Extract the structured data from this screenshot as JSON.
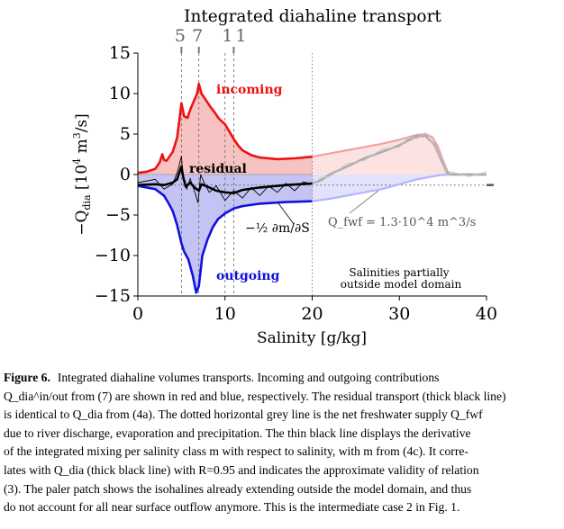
{
  "chart_data": {
    "type": "area",
    "title": "Integrated diahaline transport",
    "xlabel": "Salinity [g/kg]",
    "ylabel": "−Q_dia [10^4 m^3/s]",
    "xlim": [
      0,
      40
    ],
    "ylim": [
      -15,
      15
    ],
    "xticks": [
      0,
      10,
      20,
      30,
      40
    ],
    "yticks": [
      15,
      10,
      5,
      0,
      -5,
      -10,
      -15
    ],
    "top_markers": [
      {
        "label": "5",
        "x": 5.0
      },
      {
        "label": "7",
        "x": 7.0
      },
      {
        "label": "11",
        "x": 11.0
      }
    ],
    "vertical_lines": [
      5.0,
      7.0,
      10.0,
      11.0,
      20.0
    ],
    "series": [
      {
        "name": "incoming",
        "color": "#ee1111",
        "x": [
          0,
          1,
          2,
          2.5,
          2.8,
          3.0,
          3.3,
          4.0,
          4.5,
          4.8,
          5.0,
          5.3,
          5.7,
          6.0,
          6.4,
          6.8,
          7.0,
          7.3,
          7.8,
          8.3,
          8.8,
          9.3,
          10.0,
          10.5,
          11.0,
          11.5,
          12.0,
          13.0,
          14.0,
          16.0,
          18.0,
          20.0
        ],
        "y": [
          0.2,
          0.35,
          0.7,
          1.5,
          2.5,
          1.8,
          1.7,
          2.8,
          4.5,
          7.0,
          8.8,
          7.2,
          7.0,
          8.0,
          9.0,
          10.0,
          11.2,
          10.0,
          9.2,
          8.4,
          7.7,
          6.9,
          6.2,
          5.3,
          4.4,
          3.6,
          3.0,
          2.4,
          2.1,
          1.9,
          2.0,
          2.2
        ]
      },
      {
        "name": "outgoing",
        "color": "#1111dd",
        "x": [
          0,
          2,
          3.0,
          3.5,
          4.0,
          4.5,
          5.0,
          5.3,
          5.8,
          6.3,
          6.7,
          7.0,
          7.4,
          8.0,
          8.6,
          9.2,
          10.0,
          11.0,
          12.0,
          14.0,
          17.0,
          20.0
        ],
        "y": [
          -1.4,
          -1.8,
          -2.6,
          -3.5,
          -4.5,
          -6.2,
          -8.5,
          -9.5,
          -10.5,
          -12.5,
          -14.6,
          -13.8,
          -10.0,
          -8.0,
          -6.5,
          -5.5,
          -4.8,
          -4.2,
          -3.9,
          -3.6,
          -3.4,
          -3.3
        ]
      },
      {
        "name": "residual",
        "color": "#000000",
        "x": [
          0,
          2,
          3,
          4,
          4.5,
          5.0,
          5.2,
          5.5,
          6.0,
          6.5,
          7.0,
          7.3,
          8.0,
          9.0,
          10.0,
          11.0,
          12.0,
          14.0,
          17.0,
          20.0
        ],
        "y": [
          -1.3,
          -1.2,
          -1.3,
          -1.0,
          -0.6,
          1.0,
          -0.3,
          -1.5,
          -1.0,
          -1.6,
          -2.0,
          -1.2,
          -1.5,
          -2.0,
          -2.2,
          -2.3,
          -1.9,
          -1.6,
          -1.3,
          -1.1
        ]
      },
      {
        "name": "−½ ∂m/∂S",
        "color": "#000000",
        "x": [
          0,
          2,
          3,
          4,
          4.6,
          5.0,
          5.2,
          5.6,
          6.0,
          6.6,
          6.9,
          7.2,
          7.6,
          8.2,
          9.0,
          10.0,
          11.0,
          12.0,
          13.0,
          14.0,
          15.0,
          16.0,
          17.0,
          18.0,
          19.0,
          20.0
        ],
        "y": [
          -1.0,
          -0.6,
          -1.8,
          -1.2,
          0.5,
          2.3,
          -0.5,
          -1.8,
          -0.5,
          -2.4,
          -3.5,
          0.0,
          -1.0,
          -2.2,
          -1.4,
          -3.2,
          -2.0,
          -2.9,
          -1.6,
          -2.6,
          -1.4,
          -2.2,
          -1.1,
          -2.0,
          -0.9,
          -1.2
        ]
      },
      {
        "name": "incoming (pale)",
        "color": "#f2a0a0",
        "x": [
          20.0,
          22.0,
          24.0,
          26.0,
          28.0,
          30.0,
          31.0,
          32.0,
          33.0,
          33.8,
          34.4,
          35.0,
          35.5,
          36.0,
          38.0,
          40.0
        ],
        "y": [
          2.2,
          2.6,
          3.0,
          3.4,
          3.8,
          4.3,
          4.6,
          4.9,
          5.0,
          4.6,
          3.5,
          1.8,
          0.4,
          0.0,
          0.0,
          0.0
        ]
      },
      {
        "name": "outgoing (pale)",
        "color": "#b4b4ff",
        "x": [
          20.0,
          22.0,
          24.0,
          26.0,
          28.0,
          30.0,
          32.0,
          33.5,
          34.5,
          35.5,
          36.0,
          38.0,
          40.0
        ],
        "y": [
          -3.3,
          -3.0,
          -2.6,
          -2.2,
          -1.8,
          -1.2,
          -0.6,
          -0.3,
          -0.1,
          0.0,
          0.0,
          0.0,
          0.0
        ]
      },
      {
        "name": "residual (grey)",
        "color": "#aaaaaa",
        "x": [
          20.0,
          21.0,
          22.0,
          24.0,
          26.0,
          28.0,
          30.0,
          31.0,
          32.0,
          33.0,
          34.0,
          35.0,
          35.5,
          36.0,
          38.0,
          40.0
        ],
        "y": [
          -1.1,
          -0.7,
          0.0,
          1.0,
          2.0,
          2.8,
          3.6,
          4.2,
          4.7,
          4.8,
          3.7,
          1.4,
          0.1,
          0.0,
          0.0,
          0.0
        ]
      }
    ],
    "reference_line": {
      "label": "Q_fwf = 1.3·10^4 m^3/s",
      "y": -1.3,
      "style": "dotted",
      "color": "#666666"
    },
    "annotations": [
      {
        "text": "incoming",
        "color": "#ee1111"
      },
      {
        "text": "outgoing",
        "color": "#1111dd"
      },
      {
        "text": "residual",
        "color": "#000000"
      },
      {
        "text": "Salinities partially",
        "color": "#000000"
      },
      {
        "text": "outside model domain",
        "color": "#000000"
      }
    ],
    "grid": false,
    "legend": "none"
  },
  "caption": {
    "label": "Figure 6.",
    "lines": [
      "Integrated diahaline volumes transports. Incoming and outgoing contributions",
      "Q_dia^in/out from (7) are shown in red and blue, respectively. The residual transport (thick black line)",
      "is identical to Q_dia from (4a). The dotted horizontal grey line is the net freshwater supply Q_fwf",
      "due to river discharge, evaporation and precipitation. The thin black line displays the derivative",
      "of the integrated mixing per salinity class m with respect to salinity, with m from (4c). It corre-",
      "lates with Q_dia (thick black line) with R=0.95 and indicates the approximate validity of relation",
      "(3). The paler patch shows the isohalines already extending outside the model domain, and thus",
      "do not account for all near surface outflow anymore. This is the intermediate case 2 in Fig. 1."
    ]
  }
}
